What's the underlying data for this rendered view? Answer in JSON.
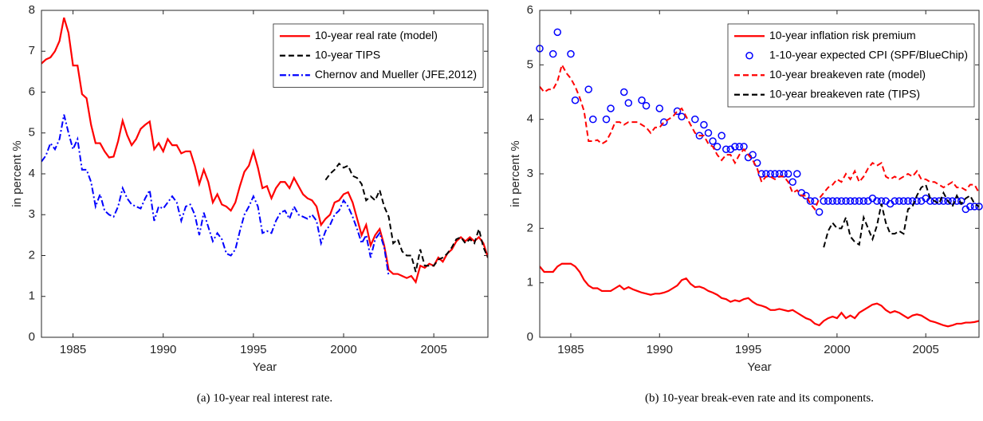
{
  "chart_data": [
    {
      "type": "line",
      "caption": "(a)  10-year real interest rate.",
      "xlabel": "Year",
      "ylabel": "in percent %",
      "xlim": [
        1983.25,
        2008
      ],
      "ylim": [
        0,
        8
      ],
      "xticks": [
        1985,
        1990,
        1995,
        2000,
        2005
      ],
      "yticks": [
        0,
        1,
        2,
        3,
        4,
        5,
        6,
        7,
        8
      ],
      "legend": "top-right",
      "x": [
        1983.25,
        1983.5,
        1983.75,
        1984,
        1984.25,
        1984.5,
        1984.75,
        1985,
        1985.25,
        1985.5,
        1985.75,
        1986,
        1986.25,
        1986.5,
        1986.75,
        1987,
        1987.25,
        1987.5,
        1987.75,
        1988,
        1988.25,
        1988.5,
        1988.75,
        1989,
        1989.25,
        1989.5,
        1989.75,
        1990,
        1990.25,
        1990.5,
        1990.75,
        1991,
        1991.25,
        1991.5,
        1991.75,
        1992,
        1992.25,
        1992.5,
        1992.75,
        1993,
        1993.25,
        1993.5,
        1993.75,
        1994,
        1994.25,
        1994.5,
        1994.75,
        1995,
        1995.25,
        1995.5,
        1995.75,
        1996,
        1996.25,
        1996.5,
        1996.75,
        1997,
        1997.25,
        1997.5,
        1997.75,
        1998,
        1998.25,
        1998.5,
        1998.75,
        1999,
        1999.25,
        1999.5,
        1999.75,
        2000,
        2000.25,
        2000.5,
        2000.75,
        2001,
        2001.25,
        2001.5,
        2001.75,
        2002,
        2002.25,
        2002.5,
        2002.75,
        2003,
        2003.25,
        2003.5,
        2003.75,
        2004,
        2004.25,
        2004.5,
        2004.75,
        2005,
        2005.25,
        2005.5,
        2005.75,
        2006,
        2006.25,
        2006.5,
        2006.75,
        2007,
        2007.25,
        2007.5,
        2007.75,
        2008
      ],
      "series": [
        {
          "name": "10-year real rate (model)",
          "color": "#ff0000",
          "line_style": "solid",
          "values": [
            6.7,
            6.8,
            6.85,
            7.0,
            7.25,
            7.82,
            7.45,
            6.65,
            6.65,
            5.95,
            5.85,
            5.2,
            4.75,
            4.75,
            4.55,
            4.4,
            4.42,
            4.8,
            5.3,
            4.95,
            4.7,
            4.85,
            5.1,
            5.2,
            5.28,
            4.6,
            4.75,
            4.55,
            4.85,
            4.7,
            4.7,
            4.5,
            4.55,
            4.55,
            4.2,
            3.75,
            4.1,
            3.8,
            3.3,
            3.5,
            3.25,
            3.2,
            3.1,
            3.3,
            3.7,
            4.05,
            4.2,
            4.55,
            4.15,
            3.65,
            3.7,
            3.4,
            3.65,
            3.8,
            3.8,
            3.65,
            3.9,
            3.7,
            3.5,
            3.4,
            3.35,
            3.2,
            2.75,
            2.9,
            3.0,
            3.3,
            3.35,
            3.5,
            3.55,
            3.3,
            2.9,
            2.5,
            2.75,
            2.25,
            2.5,
            2.65,
            2.25,
            1.65,
            1.55,
            1.55,
            1.5,
            1.45,
            1.5,
            1.35,
            1.75,
            1.7,
            1.8,
            1.75,
            1.95,
            1.85,
            2.05,
            2.15,
            2.35,
            2.45,
            2.35,
            2.45,
            2.35,
            2.45,
            2.3,
            1.95
          ]
        },
        {
          "name": "10-year TIPS",
          "color": "#000000",
          "line_style": "dashed",
          "values": [
            null,
            null,
            null,
            null,
            null,
            null,
            null,
            null,
            null,
            null,
            null,
            null,
            null,
            null,
            null,
            null,
            null,
            null,
            null,
            null,
            null,
            null,
            null,
            null,
            null,
            null,
            null,
            null,
            null,
            null,
            null,
            null,
            null,
            null,
            null,
            null,
            null,
            null,
            null,
            null,
            null,
            null,
            null,
            null,
            null,
            null,
            null,
            null,
            null,
            null,
            null,
            null,
            null,
            null,
            null,
            null,
            null,
            null,
            null,
            null,
            null,
            null,
            null,
            3.85,
            4.0,
            4.1,
            4.25,
            4.15,
            4.2,
            3.95,
            3.9,
            3.75,
            3.35,
            3.45,
            3.35,
            3.6,
            3.2,
            2.95,
            2.3,
            2.4,
            2.1,
            2.0,
            2.0,
            1.6,
            2.15,
            1.75,
            1.75,
            1.75,
            1.9,
            1.95,
            2.05,
            2.2,
            2.4,
            2.45,
            2.3,
            2.4,
            2.3,
            2.65,
            2.2,
            1.95
          ]
        },
        {
          "name": "Chernov and Mueller (JFE,2012)",
          "color": "#0000ff",
          "line_style": "dashdot",
          "values": [
            4.3,
            4.45,
            4.75,
            4.6,
            4.85,
            5.45,
            5.0,
            4.6,
            4.85,
            4.1,
            4.1,
            3.8,
            3.2,
            3.5,
            3.1,
            3.0,
            2.95,
            3.2,
            3.65,
            3.4,
            3.25,
            3.2,
            3.15,
            3.4,
            3.6,
            2.85,
            3.2,
            3.15,
            3.3,
            3.45,
            3.3,
            2.85,
            3.2,
            3.25,
            3.0,
            2.5,
            3.05,
            2.7,
            2.35,
            2.55,
            2.4,
            2.05,
            2.0,
            2.15,
            2.6,
            3.0,
            3.2,
            3.45,
            3.2,
            2.55,
            2.6,
            2.55,
            2.85,
            3.05,
            3.1,
            2.9,
            3.2,
            3.0,
            2.95,
            2.9,
            3.0,
            2.85,
            2.3,
            2.6,
            2.75,
            3.0,
            3.1,
            3.35,
            3.2,
            2.95,
            2.65,
            2.3,
            2.5,
            1.95,
            2.4,
            2.55,
            2.2,
            1.5,
            null,
            null,
            null,
            null,
            null,
            null,
            null,
            null,
            null,
            null,
            null,
            null,
            null,
            null,
            null,
            null,
            null,
            null,
            null,
            null,
            null,
            null
          ]
        }
      ]
    },
    {
      "type": "line",
      "caption": "(b)  10-year break-even rate and its components.",
      "xlabel": "Year",
      "ylabel": "in percent %",
      "xlim": [
        1983.25,
        2008
      ],
      "ylim": [
        0,
        6
      ],
      "xticks": [
        1985,
        1990,
        1995,
        2000,
        2005
      ],
      "yticks": [
        0,
        1,
        2,
        3,
        4,
        5,
        6
      ],
      "legend": "top-right",
      "x": [
        1983.25,
        1983.5,
        1983.75,
        1984,
        1984.25,
        1984.5,
        1984.75,
        1985,
        1985.25,
        1985.5,
        1985.75,
        1986,
        1986.25,
        1986.5,
        1986.75,
        1987,
        1987.25,
        1987.5,
        1987.75,
        1988,
        1988.25,
        1988.5,
        1988.75,
        1989,
        1989.25,
        1989.5,
        1989.75,
        1990,
        1990.25,
        1990.5,
        1990.75,
        1991,
        1991.25,
        1991.5,
        1991.75,
        1992,
        1992.25,
        1992.5,
        1992.75,
        1993,
        1993.25,
        1993.5,
        1993.75,
        1994,
        1994.25,
        1994.5,
        1994.75,
        1995,
        1995.25,
        1995.5,
        1995.75,
        1996,
        1996.25,
        1996.5,
        1996.75,
        1997,
        1997.25,
        1997.5,
        1997.75,
        1998,
        1998.25,
        1998.5,
        1998.75,
        1999,
        1999.25,
        1999.5,
        1999.75,
        2000,
        2000.25,
        2000.5,
        2000.75,
        2001,
        2001.25,
        2001.5,
        2001.75,
        2002,
        2002.25,
        2002.5,
        2002.75,
        2003,
        2003.25,
        2003.5,
        2003.75,
        2004,
        2004.25,
        2004.5,
        2004.75,
        2005,
        2005.25,
        2005.5,
        2005.75,
        2006,
        2006.25,
        2006.5,
        2006.75,
        2007,
        2007.25,
        2007.5,
        2007.75,
        2008
      ],
      "series": [
        {
          "name": "10-year inflation risk premium",
          "color": "#ff0000",
          "line_style": "solid",
          "values": [
            1.3,
            1.2,
            1.2,
            1.2,
            1.3,
            1.35,
            1.35,
            1.35,
            1.3,
            1.2,
            1.05,
            0.95,
            0.9,
            0.9,
            0.85,
            0.85,
            0.85,
            0.9,
            0.95,
            0.88,
            0.92,
            0.88,
            0.85,
            0.82,
            0.8,
            0.78,
            0.8,
            0.8,
            0.82,
            0.85,
            0.9,
            0.95,
            1.05,
            1.08,
            0.98,
            0.92,
            0.93,
            0.9,
            0.85,
            0.82,
            0.78,
            0.72,
            0.7,
            0.65,
            0.68,
            0.66,
            0.7,
            0.72,
            0.65,
            0.6,
            0.58,
            0.55,
            0.5,
            0.5,
            0.52,
            0.5,
            0.48,
            0.5,
            0.45,
            0.4,
            0.35,
            0.32,
            0.25,
            0.22,
            0.3,
            0.35,
            0.38,
            0.35,
            0.45,
            0.35,
            0.4,
            0.35,
            0.45,
            0.5,
            0.55,
            0.6,
            0.62,
            0.58,
            0.5,
            0.45,
            0.48,
            0.45,
            0.4,
            0.35,
            0.4,
            0.42,
            0.4,
            0.35,
            0.3,
            0.28,
            0.25,
            0.22,
            0.2,
            0.22,
            0.25,
            0.25,
            0.27,
            0.27,
            0.28,
            0.3
          ]
        },
        {
          "name": "1-10-year expected CPI (SPF/BlueChip)",
          "color": "#0000ff",
          "line_style": "none",
          "marker": "circle",
          "values": [
            5.3,
            null,
            null,
            5.2,
            5.6,
            null,
            null,
            5.2,
            4.35,
            null,
            null,
            4.55,
            4.0,
            null,
            null,
            4.0,
            4.2,
            null,
            null,
            4.5,
            4.3,
            null,
            null,
            4.35,
            4.25,
            null,
            null,
            4.2,
            3.95,
            null,
            null,
            4.15,
            4.05,
            null,
            null,
            4.0,
            3.7,
            3.9,
            3.75,
            3.6,
            3.5,
            3.7,
            3.45,
            3.45,
            3.5,
            3.5,
            3.5,
            3.3,
            3.35,
            3.2,
            3.0,
            3.0,
            3.0,
            3.0,
            3.0,
            3.0,
            3.0,
            2.85,
            3.0,
            2.65,
            2.6,
            2.5,
            2.5,
            2.3,
            2.5,
            2.5,
            2.5,
            2.5,
            2.5,
            2.5,
            2.5,
            2.5,
            2.5,
            2.5,
            2.5,
            2.55,
            2.5,
            2.5,
            2.5,
            2.45,
            2.5,
            2.5,
            2.5,
            2.5,
            2.5,
            2.5,
            2.5,
            2.55,
            2.5,
            2.5,
            2.5,
            2.5,
            2.5,
            2.5,
            2.5,
            2.5,
            2.35,
            2.4,
            2.4,
            2.4
          ]
        },
        {
          "name": "10-year breakeven rate (model)",
          "color": "#ff0000",
          "line_style": "dashed",
          "values": [
            4.6,
            4.5,
            4.55,
            4.55,
            4.7,
            5.0,
            4.85,
            4.75,
            4.6,
            4.4,
            4.15,
            3.6,
            3.6,
            3.62,
            3.55,
            3.6,
            3.75,
            3.95,
            3.95,
            3.9,
            3.95,
            3.95,
            3.95,
            3.9,
            3.85,
            3.75,
            3.85,
            3.85,
            3.95,
            4.0,
            4.05,
            4.15,
            4.2,
            4.05,
            3.9,
            3.75,
            3.7,
            3.7,
            3.55,
            3.5,
            3.35,
            3.25,
            3.35,
            3.35,
            3.2,
            3.35,
            3.45,
            3.35,
            3.25,
            3.1,
            2.85,
            2.95,
            2.95,
            2.9,
            2.95,
            2.95,
            2.85,
            2.65,
            2.7,
            2.6,
            2.6,
            2.45,
            2.35,
            2.55,
            2.65,
            2.75,
            2.8,
            2.9,
            2.85,
            3.0,
            2.9,
            3.05,
            2.85,
            2.95,
            3.1,
            3.2,
            3.15,
            3.2,
            2.95,
            2.9,
            2.95,
            2.9,
            2.95,
            3.0,
            2.95,
            3.05,
            2.9,
            2.9,
            2.85,
            2.85,
            2.8,
            2.75,
            2.8,
            2.85,
            2.75,
            2.75,
            2.7,
            2.8,
            2.8,
            2.65
          ]
        },
        {
          "name": "10-year breakeven rate (TIPS)",
          "color": "#000000",
          "line_style": "dashed",
          "values": [
            null,
            null,
            null,
            null,
            null,
            null,
            null,
            null,
            null,
            null,
            null,
            null,
            null,
            null,
            null,
            null,
            null,
            null,
            null,
            null,
            null,
            null,
            null,
            null,
            null,
            null,
            null,
            null,
            null,
            null,
            null,
            null,
            null,
            null,
            null,
            null,
            null,
            null,
            null,
            null,
            null,
            null,
            null,
            null,
            null,
            null,
            null,
            null,
            null,
            null,
            null,
            null,
            null,
            null,
            null,
            null,
            null,
            null,
            null,
            null,
            null,
            null,
            null,
            null,
            1.65,
            1.95,
            2.1,
            2.0,
            2.0,
            2.2,
            1.85,
            1.75,
            1.7,
            2.2,
            2.0,
            1.8,
            2.05,
            2.45,
            2.1,
            1.9,
            1.9,
            1.95,
            1.9,
            2.35,
            2.4,
            2.6,
            2.75,
            2.8,
            2.55,
            2.5,
            2.45,
            2.65,
            2.5,
            2.4,
            2.6,
            2.45,
            2.55,
            2.6,
            2.45,
            2.4
          ]
        }
      ]
    }
  ]
}
